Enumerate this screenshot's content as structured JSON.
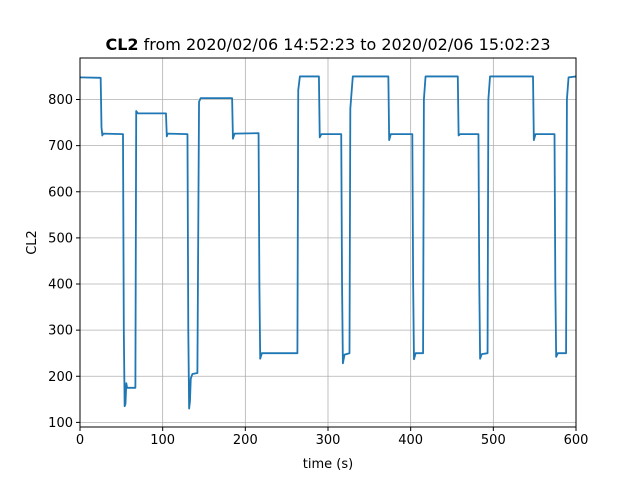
{
  "chart_data": {
    "type": "line",
    "title_bold": "CL2",
    "title_rest": " from 2020/02/06 14:52:23 to 2020/02/06 15:02:23",
    "xlabel": "time (s)",
    "ylabel": "CL2",
    "xlim": [
      0,
      600
    ],
    "ylim": [
      90,
      890
    ],
    "x_ticks": [
      0,
      100,
      200,
      300,
      400,
      500,
      600
    ],
    "y_ticks": [
      100,
      200,
      300,
      400,
      500,
      600,
      700,
      800
    ],
    "grid": true,
    "series": [
      {
        "color": "#1f77b4",
        "points": [
          [
            0,
            848
          ],
          [
            25,
            847
          ],
          [
            26,
            740
          ],
          [
            27,
            722
          ],
          [
            28,
            726
          ],
          [
            52,
            725
          ],
          [
            53,
            300
          ],
          [
            54,
            135
          ],
          [
            55,
            140
          ],
          [
            56,
            185
          ],
          [
            57,
            175
          ],
          [
            67,
            175
          ],
          [
            68,
            775
          ],
          [
            70,
            770
          ],
          [
            104,
            770
          ],
          [
            105,
            720
          ],
          [
            106,
            726
          ],
          [
            130,
            725
          ],
          [
            131,
            300
          ],
          [
            132,
            130
          ],
          [
            133,
            145
          ],
          [
            134,
            195
          ],
          [
            136,
            205
          ],
          [
            142,
            207
          ],
          [
            144,
            795
          ],
          [
            146,
            803
          ],
          [
            184,
            803
          ],
          [
            185,
            715
          ],
          [
            187,
            726
          ],
          [
            216,
            727
          ],
          [
            217,
            400
          ],
          [
            218,
            238
          ],
          [
            220,
            250
          ],
          [
            263,
            250
          ],
          [
            264,
            820
          ],
          [
            266,
            850
          ],
          [
            289,
            850
          ],
          [
            290,
            718
          ],
          [
            292,
            725
          ],
          [
            316,
            725
          ],
          [
            317,
            400
          ],
          [
            318,
            228
          ],
          [
            320,
            247
          ],
          [
            326,
            250
          ],
          [
            327,
            780
          ],
          [
            330,
            850
          ],
          [
            373,
            850
          ],
          [
            374,
            712
          ],
          [
            376,
            725
          ],
          [
            402,
            725
          ],
          [
            403,
            400
          ],
          [
            404,
            237
          ],
          [
            406,
            250
          ],
          [
            415,
            250
          ],
          [
            416,
            800
          ],
          [
            418,
            850
          ],
          [
            457,
            850
          ],
          [
            458,
            722
          ],
          [
            460,
            725
          ],
          [
            482,
            725
          ],
          [
            483,
            400
          ],
          [
            484,
            238
          ],
          [
            486,
            248
          ],
          [
            493,
            250
          ],
          [
            494,
            800
          ],
          [
            496,
            850
          ],
          [
            548,
            850
          ],
          [
            549,
            712
          ],
          [
            551,
            725
          ],
          [
            574,
            725
          ],
          [
            575,
            400
          ],
          [
            576,
            242
          ],
          [
            578,
            250
          ],
          [
            588,
            250
          ],
          [
            589,
            800
          ],
          [
            591,
            848
          ],
          [
            600,
            850
          ]
        ]
      }
    ]
  }
}
